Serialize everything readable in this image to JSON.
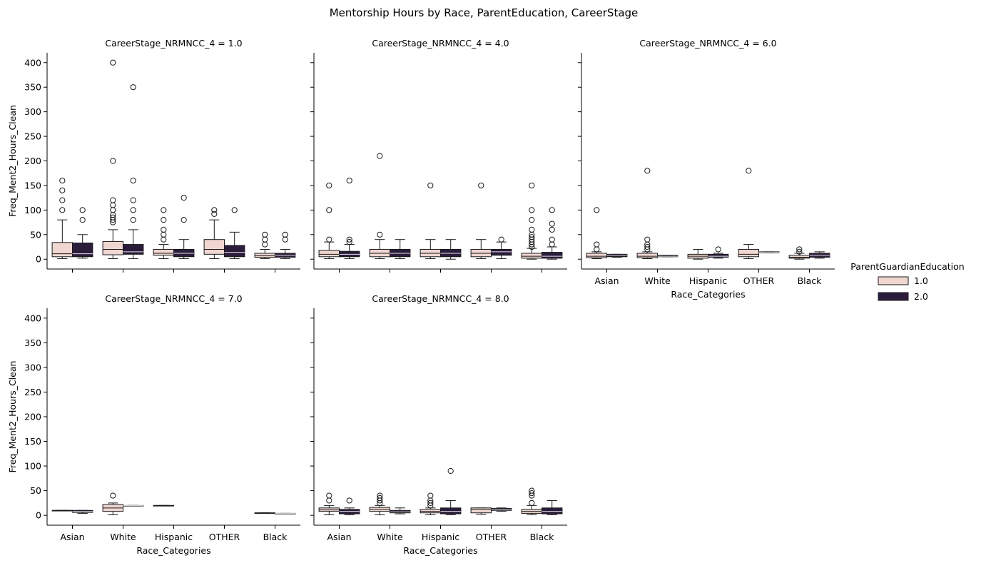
{
  "chart_data": {
    "type": "box",
    "title": "Mentorship Hours by Race, ParentEducation, CareerStage",
    "xlabel": "Race_Categories",
    "ylabel": "Freq_Ment2_Hours_Clean",
    "categories": [
      "Asian",
      "White",
      "Hispanic",
      "OTHER",
      "Black"
    ],
    "ylim": [
      -20,
      420
    ],
    "yticks": [
      0,
      50,
      100,
      150,
      200,
      250,
      300,
      350,
      400
    ],
    "grid": false,
    "legend": {
      "title": "ParentGuardianEducation",
      "placement": "right",
      "entries": [
        {
          "label": "1.0",
          "color": "#efd6d0"
        },
        {
          "label": "2.0",
          "color": "#2b1c3c"
        }
      ]
    },
    "panels": [
      {
        "title": "CareerStage_NRMNCC_4 = 1.0",
        "groups": [
          {
            "category": "Asian",
            "series": "1.0",
            "q1": 5,
            "median": 11,
            "q3": 34,
            "whisker_low": 1,
            "whisker_high": 80,
            "outliers": [
              100,
              120,
              140,
              160
            ]
          },
          {
            "category": "Asian",
            "series": "2.0",
            "q1": 5,
            "median": 11,
            "q3": 33,
            "whisker_low": 2,
            "whisker_high": 50,
            "outliers": [
              80,
              100
            ]
          },
          {
            "category": "White",
            "series": "1.0",
            "q1": 9,
            "median": 20,
            "q3": 36,
            "whisker_low": 1,
            "whisker_high": 60,
            "outliers": [
              75,
              80,
              85,
              90,
              100,
              110,
              120,
              200,
              400
            ]
          },
          {
            "category": "White",
            "series": "2.0",
            "q1": 10,
            "median": 15,
            "q3": 30,
            "whisker_low": 1,
            "whisker_high": 60,
            "outliers": [
              80,
              100,
              120,
              160,
              350
            ]
          },
          {
            "category": "Hispanic",
            "series": "1.0",
            "q1": 8,
            "median": 12,
            "q3": 20,
            "whisker_low": 1,
            "whisker_high": 30,
            "outliers": [
              40,
              50,
              60,
              80,
              100
            ]
          },
          {
            "category": "Hispanic",
            "series": "2.0",
            "q1": 5,
            "median": 12,
            "q3": 20,
            "whisker_low": 1,
            "whisker_high": 40,
            "outliers": [
              80,
              125
            ]
          },
          {
            "category": "OTHER",
            "series": "1.0",
            "q1": 10,
            "median": 20,
            "q3": 40,
            "whisker_low": 1,
            "whisker_high": 80,
            "outliers": [
              92,
              100
            ]
          },
          {
            "category": "OTHER",
            "series": "2.0",
            "q1": 5,
            "median": 14,
            "q3": 28,
            "whisker_low": 1,
            "whisker_high": 55,
            "outliers": [
              100
            ]
          },
          {
            "category": "Black",
            "series": "1.0",
            "q1": 4,
            "median": 7,
            "q3": 12,
            "whisker_low": 1,
            "whisker_high": 20,
            "outliers": [
              30,
              40,
              50
            ]
          },
          {
            "category": "Black",
            "series": "2.0",
            "q1": 4,
            "median": 8,
            "q3": 12,
            "whisker_low": 1,
            "whisker_high": 20,
            "outliers": [
              40,
              50
            ]
          }
        ]
      },
      {
        "title": "CareerStage_NRMNCC_4 = 4.0",
        "groups": [
          {
            "category": "Asian",
            "series": "1.0",
            "q1": 5,
            "median": 10,
            "q3": 18,
            "whisker_low": 1,
            "whisker_high": 35,
            "outliers": [
              40,
              100,
              150
            ]
          },
          {
            "category": "Asian",
            "series": "2.0",
            "q1": 5,
            "median": 10,
            "q3": 16,
            "whisker_low": 1,
            "whisker_high": 30,
            "outliers": [
              35,
              40,
              160
            ]
          },
          {
            "category": "White",
            "series": "1.0",
            "q1": 5,
            "median": 12,
            "q3": 20,
            "whisker_low": 1,
            "whisker_high": 40,
            "outliers": [
              50,
              210
            ]
          },
          {
            "category": "White",
            "series": "2.0",
            "q1": 5,
            "median": 12,
            "q3": 20,
            "whisker_low": 1,
            "whisker_high": 40,
            "outliers": []
          },
          {
            "category": "Hispanic",
            "series": "1.0",
            "q1": 5,
            "median": 12,
            "q3": 20,
            "whisker_low": 1,
            "whisker_high": 40,
            "outliers": [
              150
            ]
          },
          {
            "category": "Hispanic",
            "series": "2.0",
            "q1": 5,
            "median": 12,
            "q3": 20,
            "whisker_low": 0,
            "whisker_high": 40,
            "outliers": []
          },
          {
            "category": "OTHER",
            "series": "1.0",
            "q1": 5,
            "median": 12,
            "q3": 20,
            "whisker_low": 1,
            "whisker_high": 40,
            "outliers": [
              150
            ]
          },
          {
            "category": "OTHER",
            "series": "2.0",
            "q1": 8,
            "median": 15,
            "q3": 20,
            "whisker_low": 1,
            "whisker_high": 35,
            "outliers": [
              40
            ]
          },
          {
            "category": "Black",
            "series": "1.0",
            "q1": 2,
            "median": 6,
            "q3": 12,
            "whisker_low": 0,
            "whisker_high": 22,
            "outliers": [
              25,
              30,
              35,
              40,
              45,
              50,
              60,
              80,
              100,
              150
            ]
          },
          {
            "category": "Black",
            "series": "2.0",
            "q1": 2,
            "median": 6,
            "q3": 14,
            "whisker_low": 0,
            "whisker_high": 25,
            "outliers": [
              30,
              40,
              60,
              72,
              100
            ]
          }
        ]
      },
      {
        "title": "CareerStage_NRMNCC_4 = 6.0",
        "groups": [
          {
            "category": "Asian",
            "series": "1.0",
            "q1": 3,
            "median": 6,
            "q3": 12,
            "whisker_low": 1,
            "whisker_high": 15,
            "outliers": [
              20,
              30,
              100
            ]
          },
          {
            "category": "Asian",
            "series": "2.0",
            "q1": 5,
            "median": 8,
            "q3": 10,
            "whisker_low": 4,
            "whisker_high": 10,
            "outliers": []
          },
          {
            "category": "White",
            "series": "1.0",
            "q1": 3,
            "median": 6,
            "q3": 12,
            "whisker_low": 1,
            "whisker_high": 15,
            "outliers": [
              20,
              25,
              30,
              40,
              180
            ]
          },
          {
            "category": "White",
            "series": "2.0",
            "q1": 5,
            "median": 6,
            "q3": 8,
            "whisker_low": 5,
            "whisker_high": 8,
            "outliers": []
          },
          {
            "category": "Hispanic",
            "series": "1.0",
            "q1": 2,
            "median": 6,
            "q3": 10,
            "whisker_low": 0,
            "whisker_high": 20,
            "outliers": []
          },
          {
            "category": "Hispanic",
            "series": "2.0",
            "q1": 4,
            "median": 6,
            "q3": 10,
            "whisker_low": 2,
            "whisker_high": 12,
            "outliers": [
              20
            ]
          },
          {
            "category": "OTHER",
            "series": "1.0",
            "q1": 5,
            "median": 10,
            "q3": 20,
            "whisker_low": 1,
            "whisker_high": 30,
            "outliers": [
              180
            ]
          },
          {
            "category": "OTHER",
            "series": "2.0",
            "q1": 13,
            "median": 14,
            "q3": 15,
            "whisker_low": 13,
            "whisker_high": 15,
            "outliers": []
          },
          {
            "category": "Black",
            "series": "1.0",
            "q1": 2,
            "median": 4,
            "q3": 8,
            "whisker_low": 0,
            "whisker_high": 12,
            "outliers": [
              15,
              20
            ]
          },
          {
            "category": "Black",
            "series": "2.0",
            "q1": 4,
            "median": 8,
            "q3": 12,
            "whisker_low": 2,
            "whisker_high": 15,
            "outliers": []
          }
        ]
      },
      {
        "title": "CareerStage_NRMNCC_4 = 7.0",
        "groups": [
          {
            "category": "Asian",
            "series": "1.0",
            "q1": 10,
            "median": 10,
            "q3": 10,
            "whisker_low": 10,
            "whisker_high": 10,
            "outliers": []
          },
          {
            "category": "Asian",
            "series": "2.0",
            "q1": 6,
            "median": 8,
            "q3": 10,
            "whisker_low": 4,
            "whisker_high": 10,
            "outliers": []
          },
          {
            "category": "White",
            "series": "1.0",
            "q1": 8,
            "median": 15,
            "q3": 22,
            "whisker_low": 1,
            "whisker_high": 25,
            "outliers": [
              40
            ]
          },
          {
            "category": "White",
            "series": "2.0",
            "q1": 20,
            "median": 20,
            "q3": 20,
            "whisker_low": 20,
            "whisker_high": 20,
            "outliers": []
          },
          {
            "category": "Hispanic",
            "series": "1.0",
            "q1": 20,
            "median": 20,
            "q3": 20,
            "whisker_low": 20,
            "whisker_high": 20,
            "outliers": []
          },
          {
            "category": "Black",
            "series": "1.0",
            "q1": 5,
            "median": 5,
            "q3": 5,
            "whisker_low": 5,
            "whisker_high": 5,
            "outliers": []
          },
          {
            "category": "Black",
            "series": "2.0",
            "q1": 4,
            "median": 4,
            "q3": 4,
            "whisker_low": 4,
            "whisker_high": 4,
            "outliers": []
          }
        ]
      },
      {
        "title": "CareerStage_NRMNCC_4 = 8.0",
        "groups": [
          {
            "category": "Asian",
            "series": "1.0",
            "q1": 8,
            "median": 11,
            "q3": 15,
            "whisker_low": 1,
            "whisker_high": 20,
            "outliers": [
              30,
              40
            ]
          },
          {
            "category": "Asian",
            "series": "2.0",
            "q1": 3,
            "median": 8,
            "q3": 12,
            "whisker_low": 1,
            "whisker_high": 15,
            "outliers": [
              30
            ]
          },
          {
            "category": "White",
            "series": "1.0",
            "q1": 8,
            "median": 12,
            "q3": 16,
            "whisker_low": 1,
            "whisker_high": 20,
            "outliers": [
              25,
              30,
              35,
              40
            ]
          },
          {
            "category": "White",
            "series": "2.0",
            "q1": 5,
            "median": 7,
            "q3": 10,
            "whisker_low": 3,
            "whisker_high": 15,
            "outliers": []
          },
          {
            "category": "Hispanic",
            "series": "1.0",
            "q1": 5,
            "median": 8,
            "q3": 12,
            "whisker_low": 1,
            "whisker_high": 15,
            "outliers": [
              20,
              25,
              30,
              40
            ]
          },
          {
            "category": "Hispanic",
            "series": "2.0",
            "q1": 3,
            "median": 8,
            "q3": 15,
            "whisker_low": 1,
            "whisker_high": 30,
            "outliers": [
              90
            ]
          },
          {
            "category": "OTHER",
            "series": "1.0",
            "q1": 5,
            "median": 12,
            "q3": 15,
            "whisker_low": 2,
            "whisker_high": 15,
            "outliers": []
          },
          {
            "category": "OTHER",
            "series": "2.0",
            "q1": 10,
            "median": 12,
            "q3": 14,
            "whisker_low": 8,
            "whisker_high": 15,
            "outliers": []
          },
          {
            "category": "Black",
            "series": "1.0",
            "q1": 4,
            "median": 8,
            "q3": 12,
            "whisker_low": 1,
            "whisker_high": 20,
            "outliers": [
              25,
              40,
              45,
              50
            ]
          },
          {
            "category": "Black",
            "series": "2.0",
            "q1": 3,
            "median": 8,
            "q3": 15,
            "whisker_low": 1,
            "whisker_high": 30,
            "outliers": []
          }
        ]
      }
    ]
  }
}
